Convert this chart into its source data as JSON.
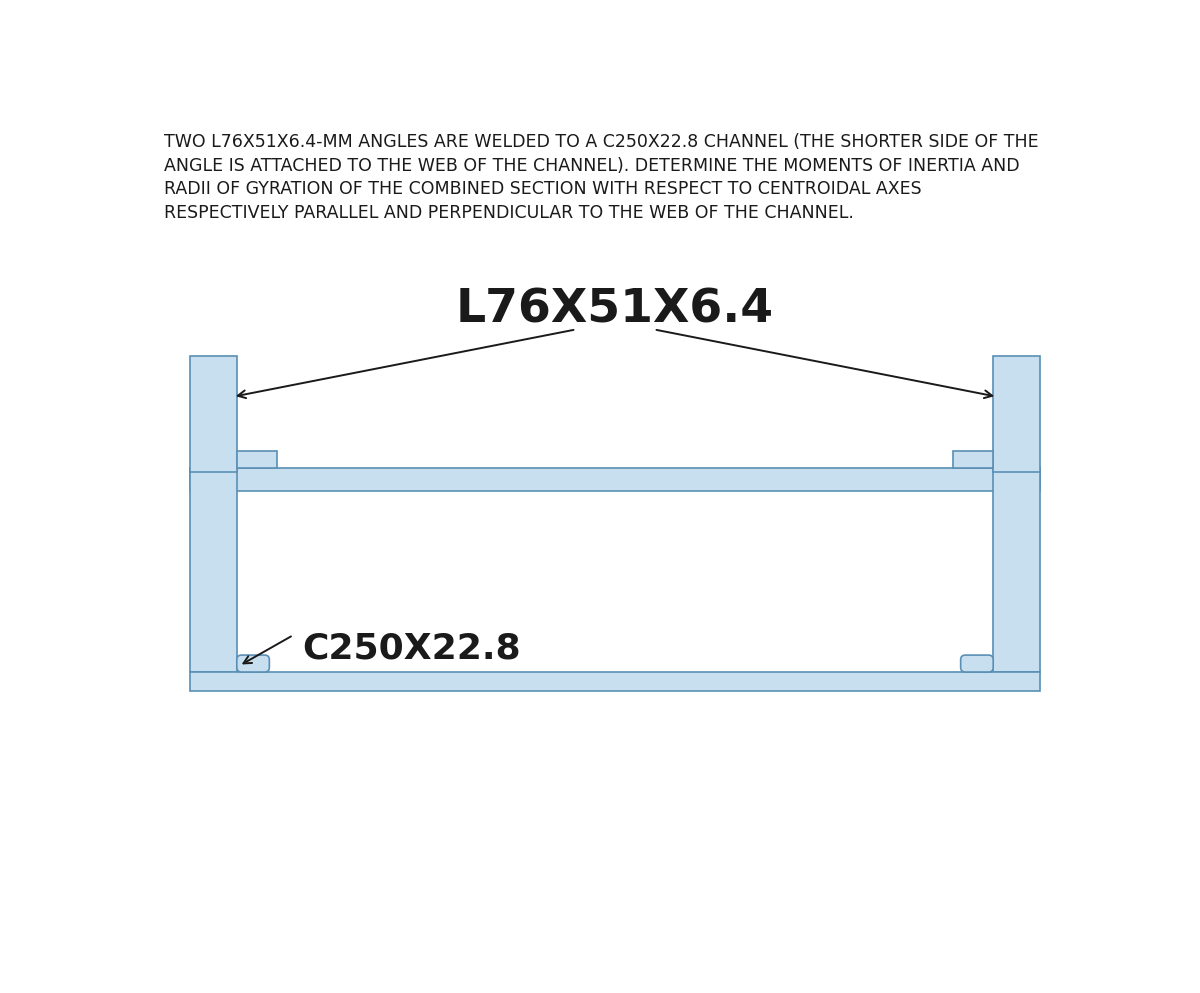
{
  "title_text": "TWO L76X51X6.4-MM ANGLES ARE WELDED TO A C250X22.8 CHANNEL (THE SHORTER SIDE OF THE\nANGLE IS ATTACHED TO THE WEB OF THE CHANNEL). DETERMINE THE MOMENTS OF INERTIA AND\nRADII OF GYRATION OF THE COMBINED SECTION WITH RESPECT TO CENTROIDAL AXES\nRESPECTIVELY PARALLEL AND PERPENDICULAR TO THE WEB OF THE CHANNEL.",
  "label_angle": "L76X51X6.4",
  "label_channel": "C250X22.8",
  "bg_color": "#ffffff",
  "fill_light": "#c8dff0",
  "fill_mid": "#aecfe8",
  "edge_color": "#5a8fb5",
  "text_color": "#1a1a1a",
  "arrow_color": "#1a1a1a",
  "title_fontsize": 12.5,
  "label_fontsize": 34,
  "channel_label_fontsize": 26
}
